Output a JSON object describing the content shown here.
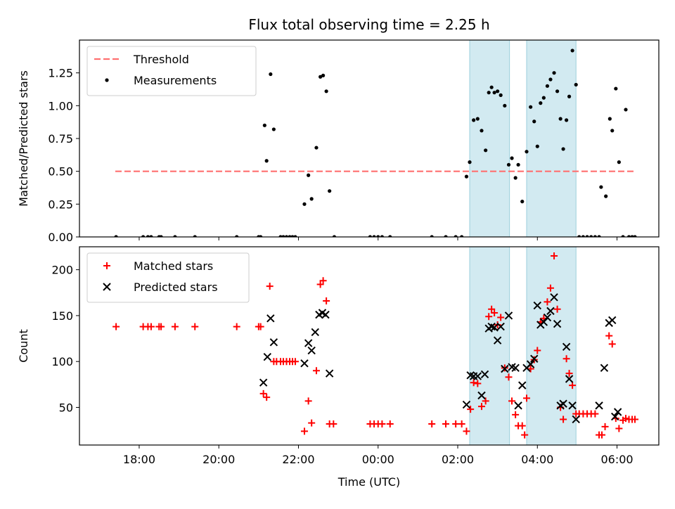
{
  "chart_data": {
    "title": "Flux total observing time = 2.25 h",
    "xlabel": "Time (UTC)",
    "x_unit": "UTC time; 24:00 = 00:00 next day, values above 24 are after midnight",
    "xlim": [
      16.5,
      31.05
    ],
    "x_ticks": [
      {
        "x": 18,
        "label": "18:00"
      },
      {
        "x": 20,
        "label": "20:00"
      },
      {
        "x": 22,
        "label": "22:00"
      },
      {
        "x": 24,
        "label": "00:00"
      },
      {
        "x": 26,
        "label": "02:00"
      },
      {
        "x": 28,
        "label": "04:00"
      },
      {
        "x": 30,
        "label": "06:00"
      }
    ],
    "shaded_spans": [
      [
        26.3,
        27.3
      ],
      [
        27.73,
        28.97
      ]
    ],
    "shade_color": "#add8e6",
    "panels": [
      {
        "id": "ratio",
        "type": "scatter",
        "ylabel": "Matched/Predicted stars",
        "ylim": [
          0,
          1.5
        ],
        "yticks": [
          "0.00",
          "0.25",
          "0.50",
          "0.75",
          "1.00",
          "1.25"
        ],
        "legend": {
          "position": "upper left",
          "entries": [
            "Threshold",
            "Measurements"
          ]
        },
        "threshold": {
          "name": "Threshold",
          "y": 0.5,
          "x_range": [
            17.4,
            30.45
          ],
          "color": "#ff7070",
          "style": "dashed"
        },
        "series": [
          {
            "name": "Measurements",
            "color": "#000000",
            "marker": "dot",
            "points": [
              [
                17.42,
                0
              ],
              [
                18.1,
                0
              ],
              [
                18.22,
                0
              ],
              [
                18.3,
                0
              ],
              [
                18.5,
                0
              ],
              [
                18.55,
                0
              ],
              [
                18.9,
                0
              ],
              [
                19.4,
                0
              ],
              [
                20.45,
                0
              ],
              [
                21.0,
                0
              ],
              [
                21.05,
                0
              ],
              [
                21.15,
                0.85
              ],
              [
                21.2,
                0.58
              ],
              [
                21.3,
                1.24
              ],
              [
                21.38,
                0.82
              ],
              [
                21.55,
                0
              ],
              [
                21.62,
                0
              ],
              [
                21.7,
                0
              ],
              [
                21.78,
                0
              ],
              [
                21.85,
                0
              ],
              [
                21.92,
                0
              ],
              [
                22.15,
                0.25
              ],
              [
                22.25,
                0.47
              ],
              [
                22.33,
                0.29
              ],
              [
                22.45,
                0.68
              ],
              [
                22.55,
                1.22
              ],
              [
                22.62,
                1.23
              ],
              [
                22.7,
                1.11
              ],
              [
                22.78,
                0.35
              ],
              [
                22.9,
                0
              ],
              [
                23.8,
                0
              ],
              [
                23.9,
                0
              ],
              [
                24.0,
                0
              ],
              [
                24.1,
                0
              ],
              [
                24.3,
                0
              ],
              [
                25.35,
                0
              ],
              [
                25.7,
                0
              ],
              [
                25.95,
                0
              ],
              [
                26.1,
                0
              ],
              [
                26.22,
                0.46
              ],
              [
                26.3,
                0.57
              ],
              [
                26.4,
                0.89
              ],
              [
                26.5,
                0.9
              ],
              [
                26.6,
                0.81
              ],
              [
                26.7,
                0.66
              ],
              [
                26.78,
                1.1
              ],
              [
                26.85,
                1.14
              ],
              [
                26.92,
                1.1
              ],
              [
                27.0,
                1.11
              ],
              [
                27.08,
                1.08
              ],
              [
                27.18,
                1.0
              ],
              [
                27.28,
                0.55
              ],
              [
                27.36,
                0.6
              ],
              [
                27.45,
                0.45
              ],
              [
                27.52,
                0.55
              ],
              [
                27.62,
                0.27
              ],
              [
                27.73,
                0.65
              ],
              [
                27.83,
                0.99
              ],
              [
                27.92,
                0.88
              ],
              [
                28.0,
                0.69
              ],
              [
                28.08,
                1.02
              ],
              [
                28.16,
                1.06
              ],
              [
                28.25,
                1.15
              ],
              [
                28.33,
                1.2
              ],
              [
                28.42,
                1.25
              ],
              [
                28.5,
                1.11
              ],
              [
                28.58,
                0.9
              ],
              [
                28.65,
                0.67
              ],
              [
                28.73,
                0.89
              ],
              [
                28.8,
                1.07
              ],
              [
                28.88,
                1.42
              ],
              [
                28.97,
                1.16
              ],
              [
                29.05,
                0
              ],
              [
                29.15,
                0
              ],
              [
                29.25,
                0
              ],
              [
                29.35,
                0
              ],
              [
                29.45,
                0
              ],
              [
                29.55,
                0
              ],
              [
                29.6,
                0.38
              ],
              [
                29.72,
                0.31
              ],
              [
                29.82,
                0.9
              ],
              [
                29.88,
                0.81
              ],
              [
                29.97,
                1.13
              ],
              [
                30.05,
                0.57
              ],
              [
                30.15,
                0
              ],
              [
                30.22,
                0.97
              ],
              [
                30.3,
                0
              ],
              [
                30.38,
                0
              ],
              [
                30.45,
                0
              ]
            ]
          }
        ]
      },
      {
        "id": "counts",
        "type": "scatter",
        "ylabel": "Count",
        "ylim": [
          9,
          225
        ],
        "yticks": [
          "50",
          "100",
          "150",
          "200"
        ],
        "legend": {
          "position": "upper left",
          "entries": [
            "Matched stars",
            "Predicted stars"
          ]
        },
        "series": [
          {
            "name": "Matched stars",
            "color": "#ff0000",
            "marker": "plus",
            "points": [
              [
                17.42,
                138
              ],
              [
                18.1,
                138
              ],
              [
                18.22,
                138
              ],
              [
                18.3,
                138
              ],
              [
                18.5,
                138
              ],
              [
                18.55,
                138
              ],
              [
                18.9,
                138
              ],
              [
                19.4,
                138
              ],
              [
                20.45,
                138
              ],
              [
                21.0,
                138
              ],
              [
                21.05,
                138
              ],
              [
                21.12,
                65
              ],
              [
                21.2,
                61
              ],
              [
                21.28,
                182
              ],
              [
                21.38,
                100
              ],
              [
                21.45,
                100
              ],
              [
                21.55,
                100
              ],
              [
                21.62,
                100
              ],
              [
                21.7,
                100
              ],
              [
                21.78,
                100
              ],
              [
                21.85,
                100
              ],
              [
                21.92,
                100
              ],
              [
                22.15,
                24
              ],
              [
                22.25,
                57
              ],
              [
                22.33,
                33
              ],
              [
                22.45,
                90
              ],
              [
                22.55,
                184
              ],
              [
                22.62,
                188
              ],
              [
                22.7,
                166
              ],
              [
                22.78,
                32
              ],
              [
                22.88,
                32
              ],
              [
                23.8,
                32
              ],
              [
                23.9,
                32
              ],
              [
                24.0,
                32
              ],
              [
                24.1,
                32
              ],
              [
                24.3,
                32
              ],
              [
                25.35,
                32
              ],
              [
                25.7,
                32
              ],
              [
                25.95,
                32
              ],
              [
                26.1,
                32
              ],
              [
                26.22,
                24
              ],
              [
                26.32,
                48
              ],
              [
                26.4,
                77
              ],
              [
                26.5,
                76
              ],
              [
                26.6,
                51
              ],
              [
                26.7,
                57
              ],
              [
                26.78,
                149
              ],
              [
                26.85,
                157
              ],
              [
                26.92,
                153
              ],
              [
                27.0,
                140
              ],
              [
                27.08,
                148
              ],
              [
                27.18,
                93
              ],
              [
                27.28,
                83
              ],
              [
                27.36,
                57
              ],
              [
                27.45,
                42
              ],
              [
                27.52,
                30
              ],
              [
                27.62,
                30
              ],
              [
                27.68,
                20
              ],
              [
                27.73,
                60
              ],
              [
                27.83,
                92
              ],
              [
                27.92,
                102
              ],
              [
                28.0,
                112
              ],
              [
                28.08,
                143
              ],
              [
                28.16,
                147
              ],
              [
                28.25,
                165
              ],
              [
                28.33,
                180
              ],
              [
                28.42,
                215
              ],
              [
                28.5,
                157
              ],
              [
                28.58,
                50
              ],
              [
                28.65,
                37
              ],
              [
                28.73,
                103
              ],
              [
                28.8,
                87
              ],
              [
                28.88,
                74
              ],
              [
                28.97,
                43
              ],
              [
                29.05,
                43
              ],
              [
                29.15,
                43
              ],
              [
                29.25,
                43
              ],
              [
                29.35,
                43
              ],
              [
                29.45,
                43
              ],
              [
                29.55,
                20
              ],
              [
                29.62,
                20
              ],
              [
                29.7,
                29
              ],
              [
                29.8,
                128
              ],
              [
                29.88,
                119
              ],
              [
                29.97,
                38
              ],
              [
                30.05,
                27
              ],
              [
                30.15,
                36
              ],
              [
                30.22,
                38
              ],
              [
                30.3,
                37
              ],
              [
                30.38,
                37
              ],
              [
                30.45,
                37
              ]
            ]
          },
          {
            "name": "Predicted stars",
            "color": "#000000",
            "marker": "cross",
            "points": [
              [
                21.12,
                77
              ],
              [
                21.22,
                105
              ],
              [
                21.3,
                147
              ],
              [
                21.38,
                121
              ],
              [
                22.15,
                98
              ],
              [
                22.25,
                120
              ],
              [
                22.33,
                112
              ],
              [
                22.42,
                132
              ],
              [
                22.52,
                151
              ],
              [
                22.6,
                153
              ],
              [
                22.68,
                151
              ],
              [
                22.78,
                87
              ],
              [
                26.22,
                53
              ],
              [
                26.32,
                85
              ],
              [
                26.4,
                84
              ],
              [
                26.5,
                84
              ],
              [
                26.6,
                63
              ],
              [
                26.68,
                86
              ],
              [
                26.78,
                136
              ],
              [
                26.85,
                138
              ],
              [
                26.92,
                137
              ],
              [
                27.0,
                123
              ],
              [
                27.08,
                138
              ],
              [
                27.18,
                92
              ],
              [
                27.28,
                150
              ],
              [
                27.36,
                94
              ],
              [
                27.45,
                93
              ],
              [
                27.52,
                52
              ],
              [
                27.62,
                74
              ],
              [
                27.73,
                93
              ],
              [
                27.83,
                97
              ],
              [
                27.92,
                103
              ],
              [
                28.0,
                161
              ],
              [
                28.08,
                140
              ],
              [
                28.16,
                143
              ],
              [
                28.25,
                148
              ],
              [
                28.33,
                155
              ],
              [
                28.42,
                170
              ],
              [
                28.5,
                141
              ],
              [
                28.58,
                52
              ],
              [
                28.65,
                54
              ],
              [
                28.73,
                116
              ],
              [
                28.8,
                81
              ],
              [
                28.88,
                52
              ],
              [
                28.97,
                37
              ],
              [
                29.55,
                52
              ],
              [
                29.68,
                93
              ],
              [
                29.8,
                142
              ],
              [
                29.88,
                145
              ],
              [
                29.95,
                40
              ],
              [
                30.02,
                45
              ]
            ]
          }
        ]
      }
    ]
  }
}
